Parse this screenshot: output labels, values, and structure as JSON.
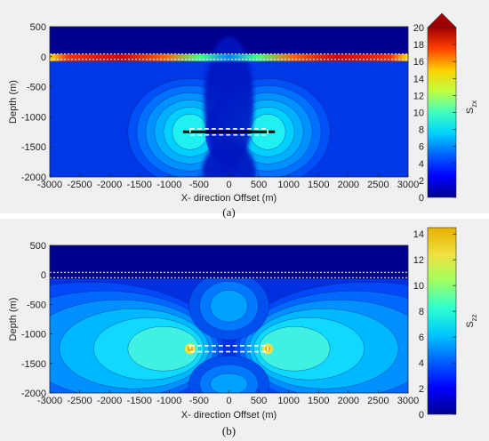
{
  "chart_data": [
    {
      "type": "heatmap",
      "panel_label": "(a)",
      "xlabel": "X- direction Offset (m)",
      "ylabel": "Depth (m)",
      "xlim": [
        -3000,
        3000
      ],
      "ylim": [
        -2000,
        500
      ],
      "x_ticks": [
        "-3000",
        "-2500",
        "-2000",
        "-1500",
        "-1000",
        "-500",
        "0",
        "500",
        "1000",
        "1500",
        "2000",
        "2500",
        "3000"
      ],
      "y_ticks": [
        "500",
        "0",
        "-500",
        "-1000",
        "-1500",
        "-2000"
      ],
      "colorbar": {
        "label_main": "S",
        "label_sub": "zx",
        "range": [
          0,
          20
        ],
        "ticks": [
          "0",
          "2",
          "4",
          "6",
          "8",
          "10",
          "12",
          "14",
          "16",
          "18",
          "20"
        ],
        "extend_max": true
      },
      "surface_line_depth": 0,
      "fracture_box": {
        "x": [
          -650,
          650
        ],
        "depth": [
          -1200,
          -1300
        ]
      },
      "colormap": [
        "#00008f",
        "#0000ff",
        "#0060ff",
        "#00d0ff",
        "#40ffc0",
        "#c0ff40",
        "#ffd000",
        "#ff4000",
        "#a00000"
      ]
    },
    {
      "type": "heatmap",
      "panel_label": "(b)",
      "xlabel": "X- direction Offset (m)",
      "ylabel": "Depth (m)",
      "xlim": [
        -3000,
        3000
      ],
      "ylim": [
        -2000,
        500
      ],
      "x_ticks": [
        "-3000",
        "-2500",
        "-2000",
        "-1500",
        "-1000",
        "-500",
        "0",
        "500",
        "1000",
        "1500",
        "2000",
        "2500",
        "3000"
      ],
      "y_ticks": [
        "500",
        "0",
        "-500",
        "-1000",
        "-1500",
        "-2000"
      ],
      "colorbar": {
        "label_main": "S",
        "label_sub": "zz",
        "range": [
          0,
          14.5
        ],
        "ticks": [
          "0",
          "2",
          "4",
          "6",
          "8",
          "10",
          "12",
          "14"
        ],
        "extend_max": false
      },
      "surface_line_depth": 0,
      "fracture_box": {
        "x": [
          -650,
          650
        ],
        "depth": [
          -1200,
          -1300
        ]
      },
      "colormap": [
        "#00008f",
        "#0000ff",
        "#0060ff",
        "#00c8ff",
        "#30ffd0",
        "#a0ff60",
        "#f0e040",
        "#e8b000"
      ]
    }
  ]
}
